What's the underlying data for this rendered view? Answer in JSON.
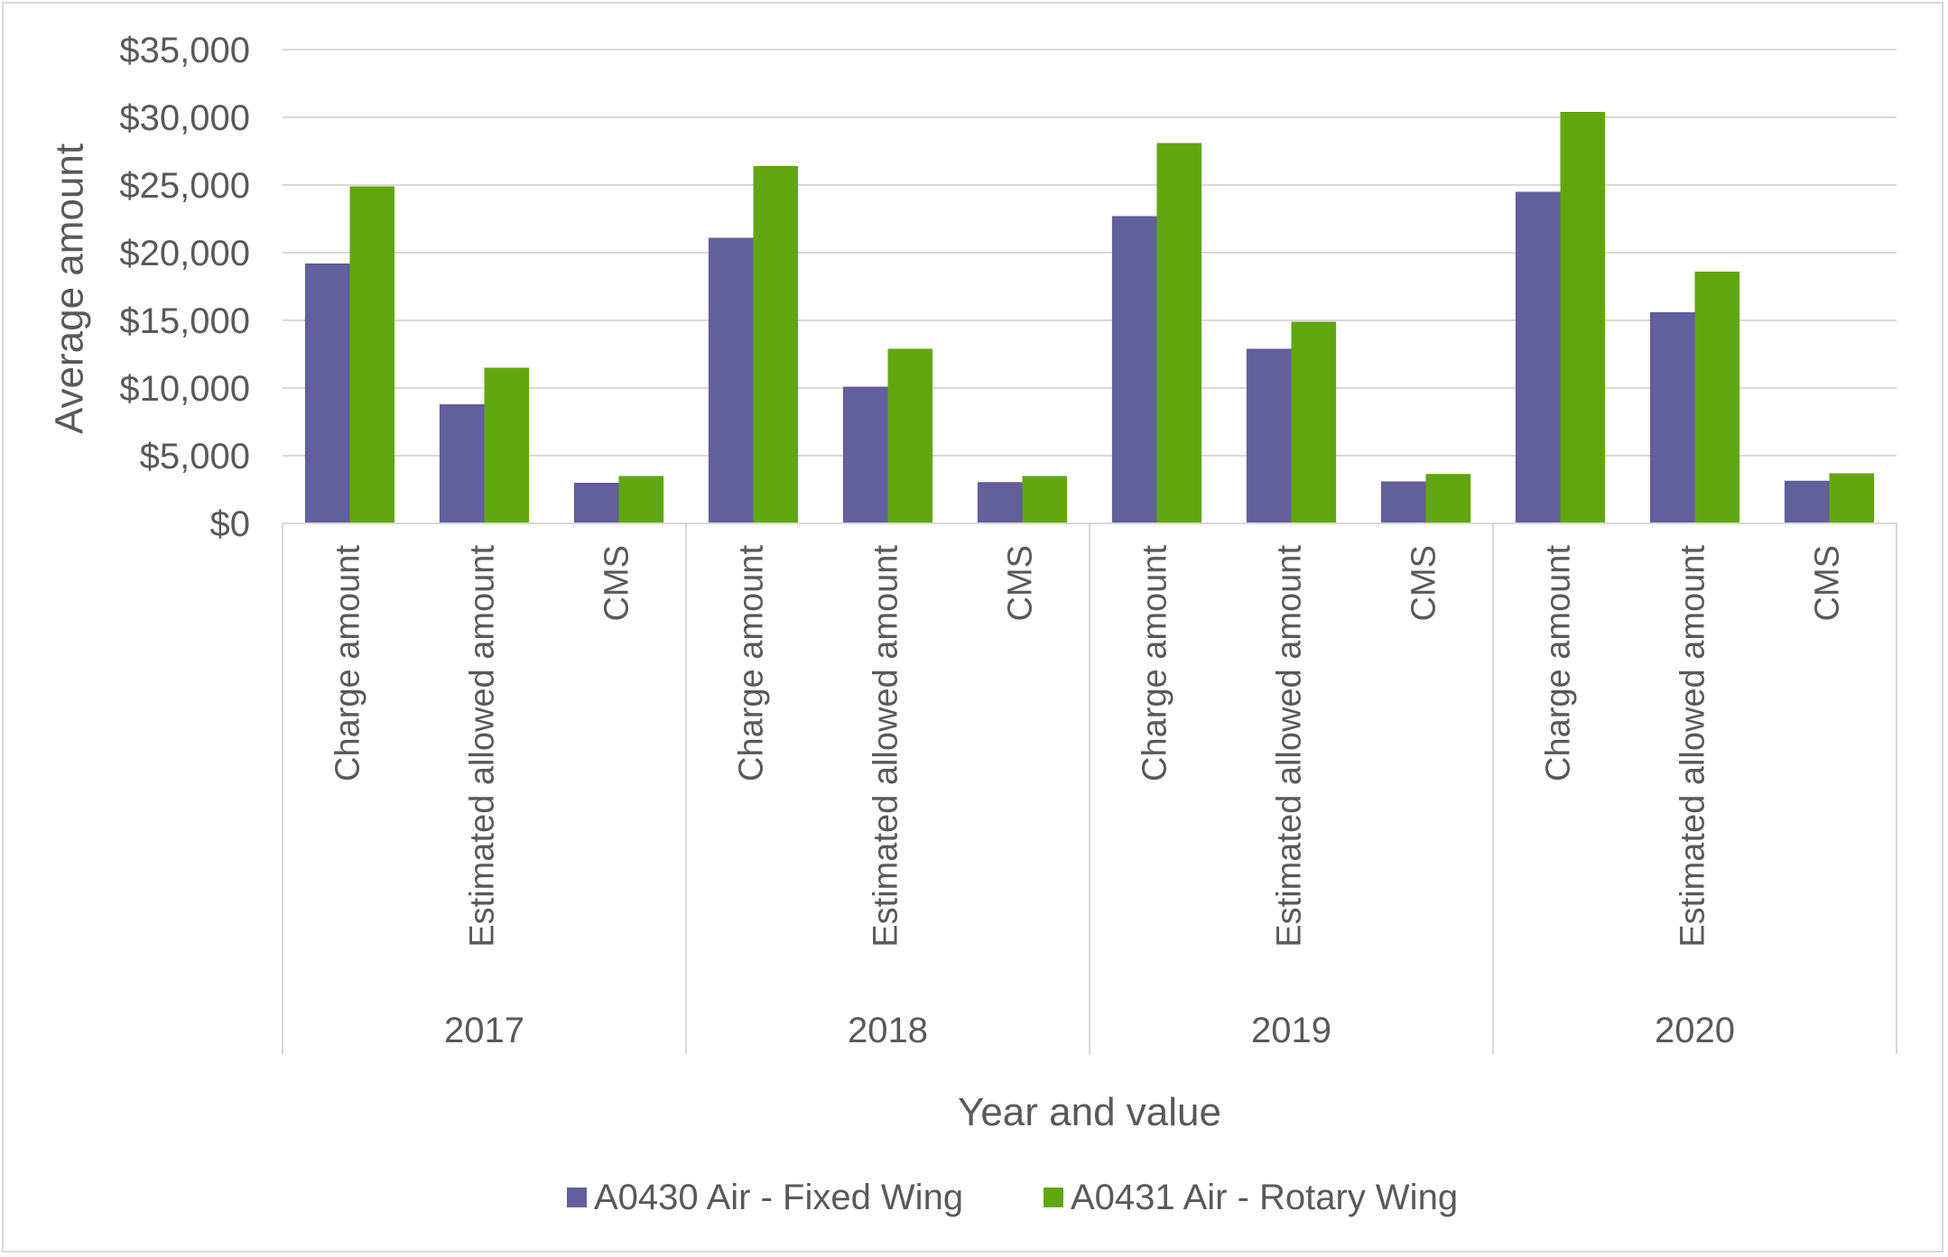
{
  "chart_data": {
    "type": "bar",
    "title": "",
    "ylabel": "Average amount",
    "xlabel": "Year and value",
    "ylim": [
      0,
      35000
    ],
    "yticks": [
      0,
      5000,
      10000,
      15000,
      20000,
      25000,
      30000,
      35000
    ],
    "ytick_labels": [
      "$0",
      "$5,000",
      "$10,000",
      "$15,000",
      "$20,000",
      "$25,000",
      "$30,000",
      "$35,000"
    ],
    "grid": true,
    "legend_position": "bottom",
    "groups": [
      {
        "year": "2017",
        "categories": [
          "Charge amount",
          "Estimated allowed amount",
          "CMS"
        ]
      },
      {
        "year": "2018",
        "categories": [
          "Charge amount",
          "Estimated allowed amount",
          "CMS"
        ]
      },
      {
        "year": "2019",
        "categories": [
          "Charge amount",
          "Estimated allowed amount",
          "CMS"
        ]
      },
      {
        "year": "2020",
        "categories": [
          "Charge amount",
          "Estimated allowed amount",
          "CMS"
        ]
      }
    ],
    "series": [
      {
        "name": "A0430 Air - Fixed Wing",
        "color": "#635e9c",
        "values": [
          19200,
          8800,
          3000,
          21100,
          10100,
          3050,
          22700,
          12900,
          3100,
          24500,
          15600,
          3150
        ]
      },
      {
        "name": "A0431 Air - Rotary Wing",
        "color": "#62a60f",
        "values": [
          24900,
          11500,
          3500,
          26400,
          12900,
          3500,
          28100,
          14900,
          3650,
          30400,
          18600,
          3700
        ]
      }
    ]
  }
}
